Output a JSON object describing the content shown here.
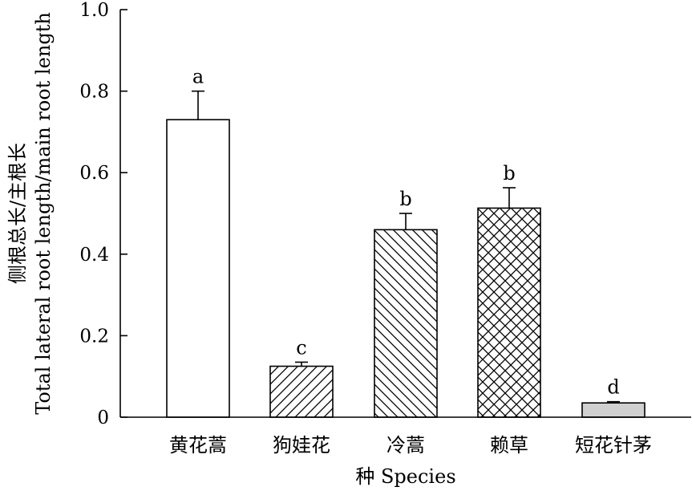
{
  "chart_data": {
    "type": "bar",
    "categories": [
      "黄花蒿",
      "狗娃花",
      "冷蒿",
      "赖草",
      "短花针茅"
    ],
    "values": [
      0.73,
      0.125,
      0.46,
      0.513,
      0.035
    ],
    "errors": [
      0.07,
      0.01,
      0.04,
      0.05,
      0.003
    ],
    "significance": [
      "a",
      "c",
      "b",
      "b",
      "d"
    ],
    "patterns": [
      "none",
      "diag-right",
      "diag-left",
      "crosshatch",
      "gray"
    ],
    "xlabel": "种 Species",
    "ylabel": [
      "侧根总长/主根长",
      "Total lateral root length/main root length"
    ],
    "ylim": [
      0,
      1.0
    ],
    "yticks": [
      "0",
      "0.2",
      "0.4",
      "0.6",
      "0.8",
      "1.0"
    ],
    "ytick_values": [
      0,
      0.2,
      0.4,
      0.6,
      0.8,
      1.0
    ],
    "colors": {
      "gray_fill": "#d0d0d0",
      "line": "#000000"
    }
  }
}
